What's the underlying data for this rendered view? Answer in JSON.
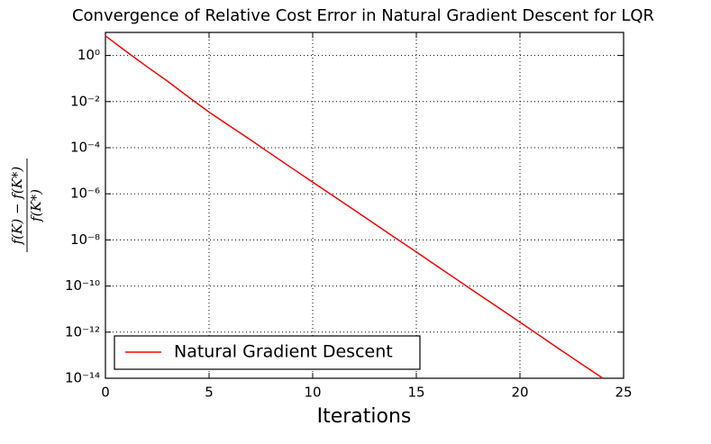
{
  "chart_data": {
    "type": "line",
    "title": "Convergence of Relative Cost Error in Natural Gradient Descent for LQR",
    "x_label": "Iterations",
    "y_label": {
      "numerator": "f(K) − f(K*)",
      "denominator": "f(K*)"
    },
    "x": [
      0,
      1,
      2,
      3,
      4,
      5,
      6,
      7,
      8,
      9,
      10,
      11,
      12,
      13,
      14,
      15,
      16,
      17,
      18,
      19,
      20,
      21,
      22,
      23,
      24
    ],
    "series": [
      {
        "name": "Natural Gradient Descent",
        "color": "#ff0000",
        "values": [
          7.1,
          1.5,
          0.33,
          0.076,
          0.016,
          0.0035,
          0.00087,
          0.00022,
          5.3e-05,
          1.3e-05,
          3.2e-06,
          8e-07,
          2e-07,
          4.9e-08,
          1.2e-08,
          3e-09,
          7.3e-10,
          1.8e-10,
          4.4e-11,
          1.1e-11,
          2.7e-12,
          6.6e-13,
          1.6e-13,
          4e-14,
          1e-14
        ]
      }
    ],
    "xlim": [
      0,
      25
    ],
    "xticks": [
      0,
      5,
      10,
      15,
      20,
      25
    ],
    "ylim": [
      1e-14,
      10
    ],
    "y_scale": "log",
    "yticks": [
      {
        "value": 1,
        "label": "10⁰"
      },
      {
        "value": 0.01,
        "label": "10⁻²"
      },
      {
        "value": 0.0001,
        "label": "10⁻⁴"
      },
      {
        "value": 1e-06,
        "label": "10⁻⁶"
      },
      {
        "value": 1e-08,
        "label": "10⁻⁸"
      },
      {
        "value": 1e-10,
        "label": "10⁻¹⁰"
      },
      {
        "value": 1e-12,
        "label": "10⁻¹²"
      },
      {
        "value": 1e-14,
        "label": "10⁻¹⁴"
      }
    ],
    "grid": true,
    "legend": "lower left"
  }
}
